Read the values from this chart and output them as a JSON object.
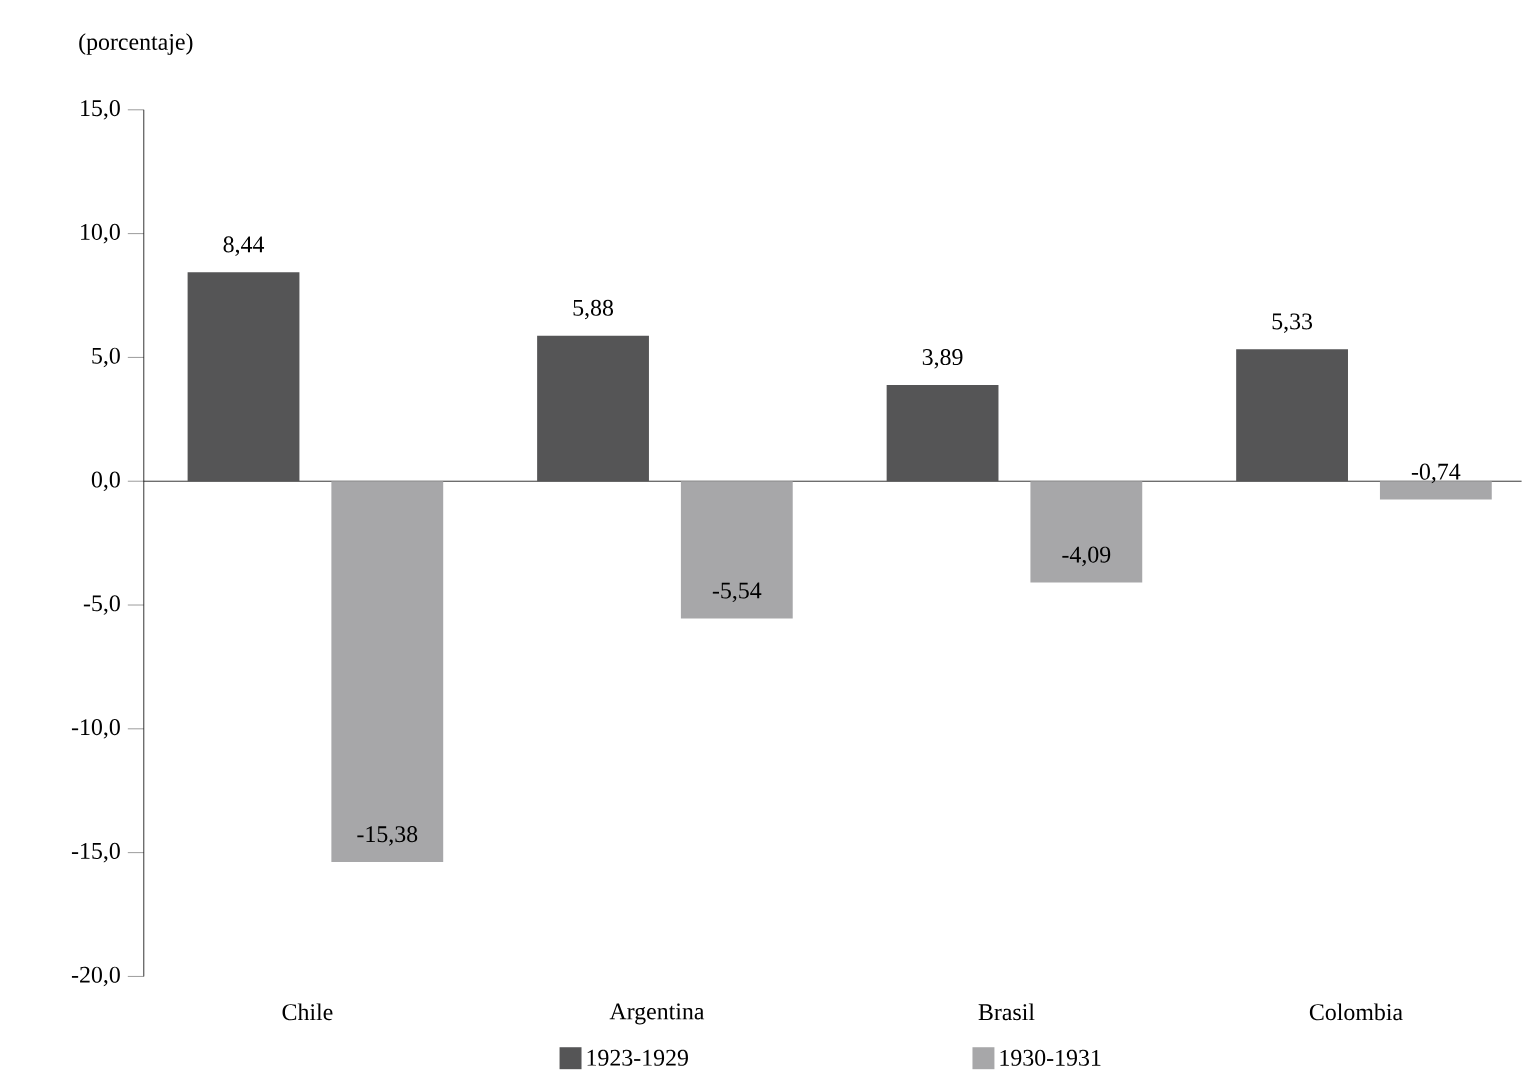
{
  "chart_data": {
    "type": "bar",
    "ylabel": "(porcentaje)",
    "categories": [
      "Chile",
      "Argentina",
      "Brasil",
      "Colombia"
    ],
    "series": [
      {
        "name": "1923-1929",
        "color": "#555556",
        "values": [
          8.44,
          5.88,
          3.89,
          5.33
        ],
        "value_labels": [
          "8,44",
          "5,88",
          "3,89",
          "5,33"
        ]
      },
      {
        "name": "1930-1931",
        "color": "#a7a7a9",
        "values": [
          -15.38,
          -5.54,
          -4.09,
          -0.74
        ],
        "value_labels": [
          "-15,38",
          "-5,54",
          "-4,09",
          "-0,74"
        ]
      }
    ],
    "ylim": [
      -20,
      15
    ],
    "yticks": [
      {
        "value": -20,
        "label": "-20,0"
      },
      {
        "value": -15,
        "label": "-15,0"
      },
      {
        "value": -10,
        "label": "-10,0"
      },
      {
        "value": -5,
        "label": "-5,0"
      },
      {
        "value": 0,
        "label": "0,0"
      },
      {
        "value": 5,
        "label": "5,0"
      },
      {
        "value": 10,
        "label": "10,0"
      },
      {
        "value": 15,
        "label": "15,0"
      }
    ],
    "legend": "bottom"
  }
}
